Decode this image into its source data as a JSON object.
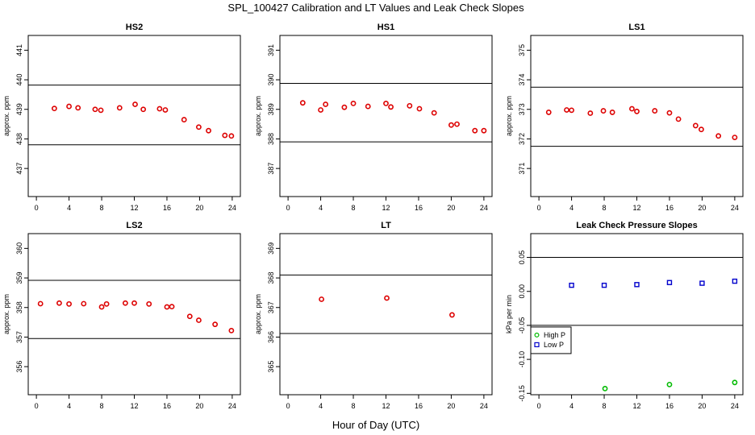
{
  "figure": {
    "title": "SPL_100427  Calibration and LT Values and Leak Check Slopes",
    "xlabel": "Hour of Day (UTC)"
  },
  "colors": {
    "cal_points": "#dd0000",
    "high_p": "#00bb00",
    "low_p": "#0000cc",
    "axes": "#000000"
  },
  "chart_data": [
    {
      "type": "scatter",
      "title": "HS2",
      "ylabel": "approx. ppm",
      "xlim": [
        -1,
        25
      ],
      "ylim": [
        436.05,
        441.5
      ],
      "xticks": [
        0,
        4,
        8,
        12,
        16,
        20,
        24
      ],
      "xtick_labels": [
        "0",
        "4",
        "8",
        "12",
        "16",
        "20",
        "24"
      ],
      "yticks": [
        437,
        438,
        439,
        440,
        441
      ],
      "ytick_labels": [
        "437",
        "438",
        "439",
        "440",
        "441"
      ],
      "hlines": [
        439.82,
        437.8
      ],
      "series": [
        {
          "marker_color": "#dd0000",
          "x": [
            2.2,
            4.0,
            5.1,
            7.2,
            7.9,
            10.2,
            12.1,
            13.1,
            15.1,
            15.8,
            18.1,
            19.9,
            21.1,
            23.1,
            23.9
          ],
          "y": [
            439.03,
            439.1,
            439.05,
            439.0,
            438.97,
            439.05,
            439.17,
            439.0,
            439.02,
            438.98,
            438.65,
            438.4,
            438.28,
            438.12,
            438.1
          ]
        }
      ]
    },
    {
      "type": "scatter",
      "title": "HS1",
      "ylabel": "approx. ppm",
      "xlim": [
        -1,
        25
      ],
      "ylim": [
        386.05,
        391.5
      ],
      "xticks": [
        0,
        4,
        8,
        12,
        16,
        20,
        24
      ],
      "xtick_labels": [
        "0",
        "4",
        "8",
        "12",
        "16",
        "20",
        "24"
      ],
      "yticks": [
        387,
        388,
        389,
        390,
        391
      ],
      "ytick_labels": [
        "387",
        "388",
        "389",
        "390",
        "391"
      ],
      "hlines": [
        389.88,
        387.9
      ],
      "series": [
        {
          "marker_color": "#dd0000",
          "x": [
            1.8,
            4.0,
            4.6,
            6.9,
            8.0,
            9.8,
            12.0,
            12.6,
            14.9,
            16.1,
            17.9,
            20.0,
            20.7,
            22.9,
            24.0
          ],
          "y": [
            389.22,
            388.98,
            389.17,
            389.07,
            389.2,
            389.1,
            389.2,
            389.08,
            389.12,
            389.02,
            388.88,
            388.47,
            388.5,
            388.28,
            388.28
          ]
        }
      ]
    },
    {
      "type": "scatter",
      "title": "LS1",
      "ylabel": "approx. ppm",
      "xlim": [
        -1,
        25
      ],
      "ylim": [
        370.05,
        375.5
      ],
      "xticks": [
        0,
        4,
        8,
        12,
        16,
        20,
        24
      ],
      "xtick_labels": [
        "0",
        "4",
        "8",
        "12",
        "16",
        "20",
        "24"
      ],
      "yticks": [
        371,
        372,
        373,
        374,
        375
      ],
      "ytick_labels": [
        "371",
        "372",
        "373",
        "374",
        "375"
      ],
      "hlines": [
        373.75,
        371.75
      ],
      "series": [
        {
          "marker_color": "#dd0000",
          "x": [
            1.2,
            3.4,
            4.0,
            6.3,
            7.9,
            9.0,
            11.4,
            12.0,
            14.2,
            16.0,
            17.1,
            19.2,
            19.9,
            22.0,
            24.0
          ],
          "y": [
            372.9,
            372.98,
            372.97,
            372.87,
            372.95,
            372.9,
            373.02,
            372.93,
            372.95,
            372.88,
            372.67,
            372.45,
            372.32,
            372.1,
            372.05
          ]
        }
      ]
    },
    {
      "type": "scatter",
      "title": "LS2",
      "ylabel": "approx. ppm",
      "xlim": [
        -1,
        25
      ],
      "ylim": [
        355.05,
        360.5
      ],
      "xticks": [
        0,
        4,
        8,
        12,
        16,
        20,
        24
      ],
      "xtick_labels": [
        "0",
        "4",
        "8",
        "12",
        "16",
        "20",
        "24"
      ],
      "yticks": [
        356,
        357,
        358,
        359,
        360
      ],
      "ytick_labels": [
        "356",
        "357",
        "358",
        "359",
        "360"
      ],
      "hlines": [
        358.92,
        356.95
      ],
      "series": [
        {
          "marker_color": "#dd0000",
          "x": [
            0.5,
            2.8,
            4.0,
            5.8,
            8.0,
            8.6,
            10.9,
            12.0,
            13.8,
            16.0,
            16.6,
            18.8,
            19.9,
            21.9,
            23.9
          ],
          "y": [
            358.13,
            358.15,
            358.12,
            358.13,
            358.02,
            358.12,
            358.15,
            358.15,
            358.12,
            358.02,
            358.03,
            357.7,
            357.57,
            357.43,
            357.22
          ]
        }
      ]
    },
    {
      "type": "scatter",
      "title": "LT",
      "ylabel": "approx. ppm",
      "xlim": [
        -1,
        25
      ],
      "ylim": [
        364.05,
        369.5
      ],
      "xticks": [
        0,
        4,
        8,
        12,
        16,
        20,
        24
      ],
      "xtick_labels": [
        "0",
        "4",
        "8",
        "12",
        "16",
        "20",
        "24"
      ],
      "yticks": [
        365,
        366,
        367,
        368,
        369
      ],
      "ytick_labels": [
        "365",
        "366",
        "367",
        "368",
        "369"
      ],
      "hlines": [
        368.1,
        366.12
      ],
      "series": [
        {
          "marker_color": "#dd0000",
          "x": [
            4.1,
            12.1,
            20.1
          ],
          "y": [
            367.28,
            367.32,
            366.75
          ]
        }
      ]
    },
    {
      "type": "scatter",
      "title": "Leak Check Pressure Slopes",
      "ylabel": "kPa per min",
      "xlim": [
        -1,
        25
      ],
      "ylim": [
        -0.152,
        0.085
      ],
      "xticks": [
        0,
        4,
        8,
        12,
        16,
        20,
        24
      ],
      "xtick_labels": [
        "0",
        "4",
        "8",
        "12",
        "16",
        "20",
        "24"
      ],
      "yticks": [
        -0.15,
        -0.1,
        -0.05,
        0.0,
        0.05
      ],
      "ytick_labels": [
        "-0.15",
        "-0.10",
        "-0.05",
        "0.00",
        "0.05"
      ],
      "hlines": [
        0.05,
        -0.05
      ],
      "legend": {
        "placement": "middle-left",
        "entries": [
          "High P",
          "Low P"
        ]
      },
      "series": [
        {
          "name": "High P",
          "marker_color": "#00bb00",
          "x": [
            8.1,
            16.0,
            24.0
          ],
          "y": [
            -0.143,
            -0.137,
            -0.134
          ]
        },
        {
          "name": "Low P",
          "marker_color": "#0000cc",
          "x": [
            4.0,
            8.0,
            12.0,
            16.0,
            20.0,
            24.0
          ],
          "y": [
            0.009,
            0.009,
            0.01,
            0.013,
            0.012,
            0.015
          ]
        }
      ]
    }
  ]
}
